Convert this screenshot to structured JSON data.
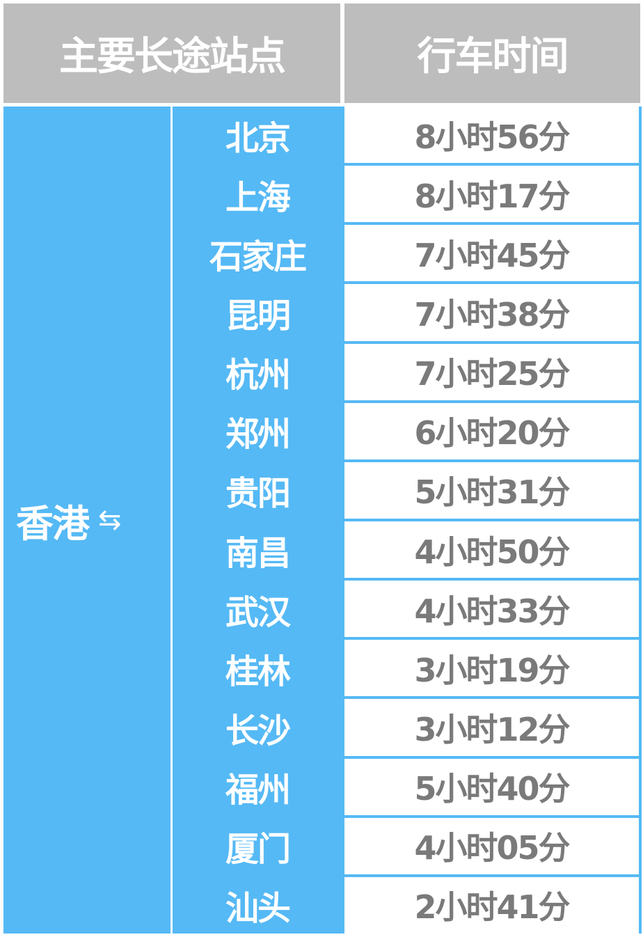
{
  "header": {
    "station_label": "主要长途站点",
    "time_label": "行车时间"
  },
  "origin": {
    "name": "香港",
    "arrow": "⇆"
  },
  "colors": {
    "header_bg": "#bdbdbd",
    "accent_blue": "#55b9f5",
    "time_text": "#7a7a7a"
  },
  "rows": [
    {
      "city": "北京",
      "time": "8小时56分"
    },
    {
      "city": "上海",
      "time": "8小时17分"
    },
    {
      "city": "石家庄",
      "time": "7小时45分"
    },
    {
      "city": "昆明",
      "time": "7小时38分"
    },
    {
      "city": "杭州",
      "time": "7小时25分"
    },
    {
      "city": "郑州",
      "time": "6小时20分"
    },
    {
      "city": "贵阳",
      "time": "5小时31分"
    },
    {
      "city": "南昌",
      "time": "4小时50分"
    },
    {
      "city": "武汉",
      "time": "4小时33分"
    },
    {
      "city": "桂林",
      "time": "3小时19分"
    },
    {
      "city": "长沙",
      "time": "3小时12分"
    },
    {
      "city": "福州",
      "time": "5小时40分"
    },
    {
      "city": "厦门",
      "time": "4小时05分"
    },
    {
      "city": "汕头",
      "time": "2小时41分"
    }
  ]
}
